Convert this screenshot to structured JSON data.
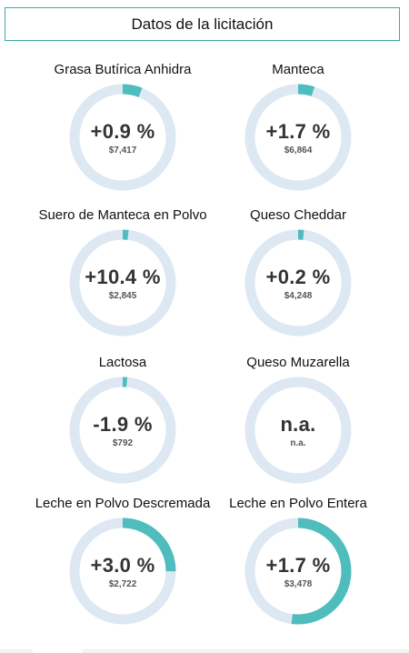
{
  "header": {
    "title": "Datos de la licitación"
  },
  "colors": {
    "ring_track": "#dde8f3",
    "ring_fill": "#4fbdbd",
    "header_border": "#3fa9a8"
  },
  "cards": [
    {
      "title": "Grasa Butírica Anhidra",
      "change": "+0.9 %",
      "price": "$7,417",
      "fill": 0.06
    },
    {
      "title": "Manteca",
      "change": "+1.7 %",
      "price": "$6,864",
      "fill": 0.05
    },
    {
      "title": "Suero de Manteca en Polvo",
      "change": "+10.4 %",
      "price": "$2,845",
      "fill": 0.018
    },
    {
      "title": "Queso Cheddar",
      "change": "+0.2 %",
      "price": "$4,248",
      "fill": 0.018
    },
    {
      "title": "Lactosa",
      "change": "-1.9 %",
      "price": "$792",
      "fill": 0.014
    },
    {
      "title": "Queso Muzarella",
      "change": "n.a.",
      "price": "n.a.",
      "fill": 0
    },
    {
      "title": "Leche en Polvo Descremada",
      "change": "+3.0 %",
      "price": "$2,722",
      "fill": 0.25
    },
    {
      "title": "Leche en Polvo Entera",
      "change": "+1.7 %",
      "price": "$3,478",
      "fill": 0.52
    }
  ]
}
